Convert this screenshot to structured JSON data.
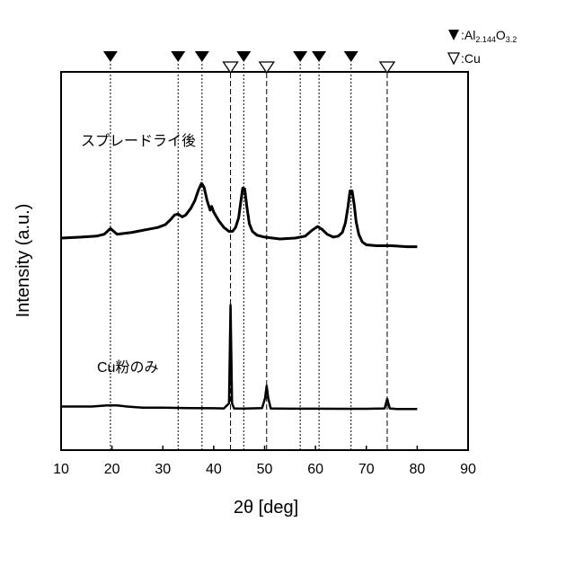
{
  "chart_data": {
    "type": "line",
    "xlabel": "2θ [deg]",
    "ylabel": "Intensity (a.u.)",
    "xlim": [
      10,
      90
    ],
    "xticks": [
      10,
      20,
      30,
      40,
      50,
      60,
      70,
      80,
      90
    ],
    "grid": false,
    "legend": {
      "position": "top-right",
      "entries": [
        {
          "marker": "filled-triangle",
          "prefix": ":Al",
          "sub1": "2.144",
          "mid": "O",
          "sub2": "3.2"
        },
        {
          "marker": "open-triangle",
          "label": ":Cu"
        }
      ]
    },
    "reference_markers": {
      "al2o3": [
        19.7,
        33.0,
        37.7,
        45.9,
        57.0,
        60.7,
        67.0
      ],
      "cu": [
        43.3,
        50.4,
        74.1
      ]
    },
    "series": [
      {
        "label": "スプレードライ後",
        "x": [
          10,
          14,
          17,
          18.5,
          19.7,
          21,
          24,
          27,
          29,
          30.5,
          31.5,
          32.3,
          33.0,
          33.8,
          34.5,
          35.5,
          36.3,
          37.0,
          37.6,
          38.1,
          38.7,
          39.3,
          39.6,
          40.0,
          41.0,
          42.0,
          43.0,
          43.7,
          44.3,
          44.9,
          45.3,
          45.7,
          46.1,
          46.5,
          47.0,
          47.6,
          48.5,
          50,
          53,
          56,
          58,
          59.3,
          60.4,
          61.3,
          62.3,
          63.5,
          64.5,
          65.3,
          65.9,
          66.4,
          66.8,
          67.2,
          67.6,
          68.0,
          68.5,
          69.2,
          70,
          72,
          75,
          78,
          80
        ],
        "y": [
          29,
          30,
          31,
          33,
          39,
          33,
          35,
          38,
          40,
          43,
          48,
          53,
          54,
          51,
          53,
          60,
          68,
          79,
          86,
          82,
          68,
          58,
          62,
          56,
          47,
          40,
          36,
          36,
          40,
          50,
          66,
          81,
          80,
          62,
          44,
          36,
          32,
          30,
          28,
          29,
          31,
          37,
          41,
          38,
          33,
          30,
          31,
          35,
          45,
          62,
          78,
          78,
          64,
          46,
          33,
          25,
          22,
          21,
          21,
          20,
          20
        ]
      },
      {
        "label": "Cu粉のみ",
        "x": [
          10,
          16,
          19,
          21,
          23,
          26,
          30,
          35,
          40,
          42,
          43.0,
          43.3,
          43.6,
          44.0,
          46,
          49.5,
          50.1,
          50.4,
          50.7,
          51.2,
          55,
          60,
          65,
          70,
          73.6,
          74.1,
          74.6,
          76,
          80
        ],
        "y": [
          7,
          7,
          8,
          8,
          7,
          6,
          6,
          5.6,
          5.4,
          5.3,
          10,
          100,
          10,
          5.3,
          5.2,
          5.5,
          15,
          26,
          15,
          5.3,
          5.0,
          5.0,
          4.9,
          4.9,
          5.3,
          14,
          5.3,
          4.8,
          4.8
        ]
      }
    ]
  }
}
